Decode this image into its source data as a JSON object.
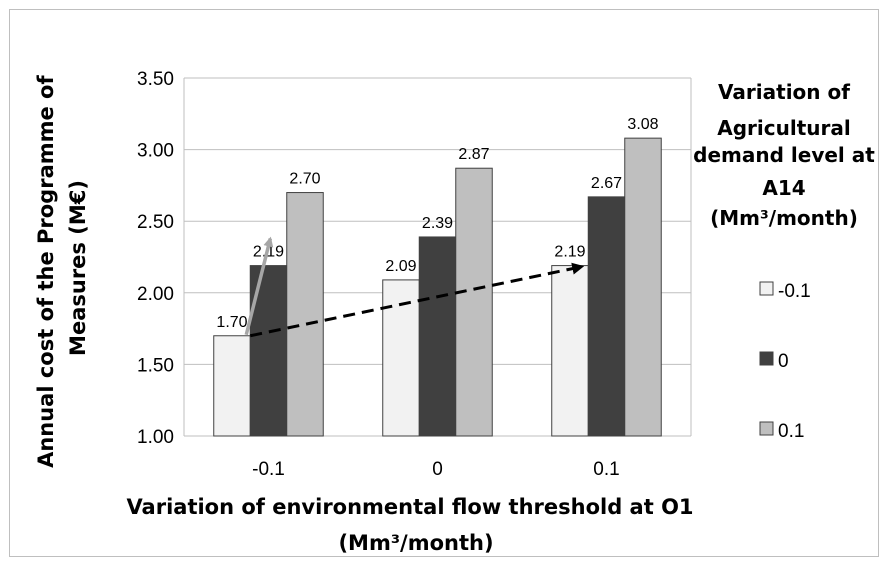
{
  "chart_data": {
    "type": "bar",
    "categories": [
      "-0.1",
      "0",
      "0.1"
    ],
    "series": [
      {
        "name": "-0.1",
        "values": [
          1.7,
          2.09,
          2.19
        ],
        "color": "#f2f2f2"
      },
      {
        "name": "0",
        "values": [
          2.19,
          2.39,
          2.67
        ],
        "color": "#404040"
      },
      {
        "name": "0.1",
        "values": [
          2.7,
          2.87,
          3.08
        ],
        "color": "#bfbfbf"
      }
    ],
    "data_labels": [
      [
        "1.70",
        "2.09",
        "2.19"
      ],
      [
        "2.19",
        "2.39",
        "2.67"
      ],
      [
        "2.70",
        "2.87",
        "3.08"
      ]
    ],
    "y_ticks": [
      "1.00",
      "1.50",
      "2.00",
      "2.50",
      "3.00",
      "3.50"
    ],
    "ylim": [
      1.0,
      3.5
    ],
    "ylabel_lines": [
      "Annual  cost of the Programme of",
      "Measures (M€)"
    ],
    "xlabel_lines": [
      "Variation of environmental flow threshold at O1",
      "(Mm³/month)"
    ],
    "legend_title_lines": [
      "Variation of",
      "Agricultural",
      "demand level at",
      "A14",
      "(Mm³/month)"
    ],
    "legend_position": "right",
    "grid": true,
    "annotations": [
      {
        "type": "arrow",
        "style": "solid",
        "color": "#a6a6a6",
        "from": {
          "category": "-0.1",
          "series": "-0.1"
        },
        "to": {
          "category": "-0.1",
          "series": "0"
        }
      },
      {
        "type": "arrow",
        "style": "dashed",
        "color": "#000000",
        "from": {
          "category": "-0.1",
          "series": "-0.1"
        },
        "to": {
          "category": "0.1",
          "series": "-0.1"
        }
      }
    ]
  }
}
